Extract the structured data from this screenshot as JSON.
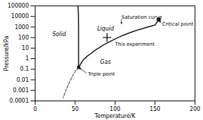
{
  "chart_data": {
    "type": "line",
    "title": "",
    "xlabel": "Temperature/K",
    "ylabel": "Pressure/kPa",
    "log": "y",
    "grid": false,
    "xlim": [
      0,
      200
    ],
    "ylim": [
      0.0001,
      100000
    ],
    "xticks": [
      0,
      50,
      100,
      150,
      200
    ],
    "yticks": [
      0.0001,
      0.001,
      0.01,
      0.1,
      1,
      10,
      100,
      1000,
      10000,
      100000
    ],
    "series": [
      {
        "type": "line",
        "color": "#111111",
        "line_style": "solid",
        "x": [
          54.4,
          60,
          65,
          70,
          75,
          80,
          85,
          90,
          95,
          100,
          110,
          120,
          130,
          140,
          150,
          154.6
        ],
        "values": [
          0.15,
          0.73,
          1.7,
          3.16,
          6.3,
          10.8,
          19.0,
          30.0,
          47.0,
          75.0,
          163.0,
          320.0,
          570.0,
          960.0,
          1550.0,
          5043.0
        ]
      },
      {
        "type": "line",
        "color": "#111111",
        "line_style": "solid",
        "x": [
          54.4,
          54.35,
          54.3,
          54.25,
          54.2,
          54.1,
          54.0,
          53.8,
          53.5
        ],
        "values": [
          0.15,
          500,
          1500,
          3000,
          6000,
          15000,
          30000,
          60000,
          100000
        ]
      },
      {
        "type": "line",
        "color": "#555555",
        "line_style": "dashed",
        "x": [
          54.4,
          50,
          46,
          42,
          38,
          35
        ],
        "values": [
          0.15,
          0.06,
          0.018,
          0.004,
          0.0008,
          0.0002
        ]
      },
      {
        "type": "scatter",
        "color": "#111111",
        "marker": "square",
        "x": [
          54.4
        ],
        "values": [
          0.15
        ]
      },
      {
        "type": "scatter",
        "color": "#111111",
        "marker": "circle",
        "x": [
          154.6
        ],
        "values": [
          5043
        ]
      },
      {
        "type": "scatter",
        "color": "#111111",
        "marker": "plus",
        "x": [
          90
        ],
        "values": [
          100
        ]
      }
    ],
    "labels": [
      {
        "text": "Liquid",
        "x": 88,
        "y": 700
      },
      {
        "text": "Solid",
        "x": 30,
        "y": 200
      },
      {
        "text": "Gas",
        "x": 88,
        "y": 0.5
      }
    ],
    "annotations": [
      {
        "text": "Saturation curve",
        "x": 108,
        "y": 8000,
        "arrow_x": 108,
        "arrow_y": 1500
      },
      {
        "text": "Critical point",
        "x": 159,
        "y": 1800,
        "arrow_x": 154.6,
        "arrow_y": 5043
      },
      {
        "text": "Triple point",
        "x": 66,
        "y": 0.035,
        "arrow_x": 54.4,
        "arrow_y": 0.15
      },
      {
        "text": "This experiment",
        "x": 100,
        "y": 22
      }
    ]
  }
}
